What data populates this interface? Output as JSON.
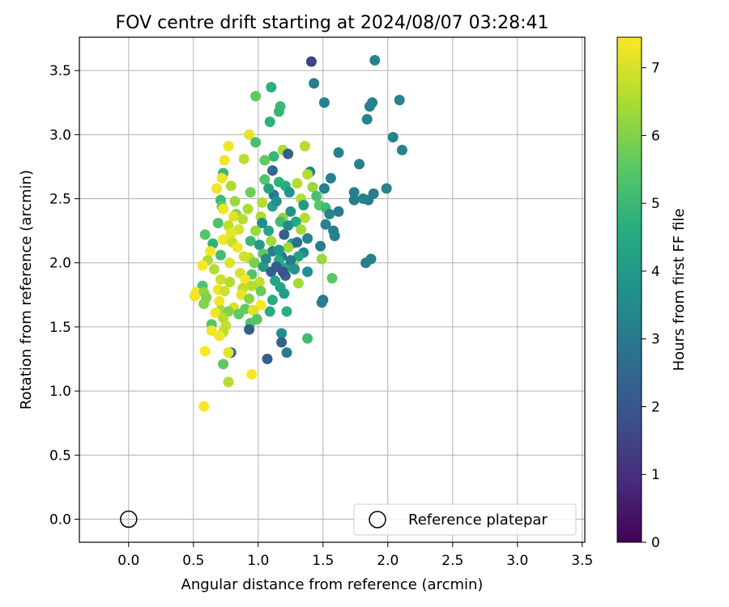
{
  "chart_data": {
    "type": "scatter",
    "title": "FOV centre drift starting at 2024/08/07 03:28:41",
    "xlabel": "Angular distance from reference (arcmin)",
    "ylabel": "Rotation from reference (arcmin)",
    "xlim": [
      -0.38,
      3.52
    ],
    "ylim": [
      -0.18,
      3.76
    ],
    "xticks": [
      "0.0",
      "0.5",
      "1.0",
      "1.5",
      "2.0",
      "2.5",
      "3.0",
      "3.5"
    ],
    "yticks": [
      "0.0",
      "0.5",
      "1.0",
      "1.5",
      "2.0",
      "2.5",
      "3.0",
      "3.5"
    ],
    "grid": true,
    "colorbar": {
      "label": "Hours from first FF file",
      "range": [
        0,
        7.45
      ],
      "ticks": [
        "0",
        "1",
        "2",
        "3",
        "4",
        "5",
        "6",
        "7"
      ],
      "colormap": "viridis"
    },
    "legend": {
      "position": "lower-right",
      "entries": [
        "Reference platepar"
      ]
    },
    "reference_point": {
      "x": 0.0,
      "y": 0.0
    },
    "points": [
      [
        1.41,
        3.57,
        1.5
      ],
      [
        1.9,
        3.58,
        3.3
      ],
      [
        1.43,
        3.4,
        3.1
      ],
      [
        1.1,
        3.37,
        4.7
      ],
      [
        0.98,
        3.3,
        5.6
      ],
      [
        1.51,
        3.25,
        3.2
      ],
      [
        2.09,
        3.27,
        3.3
      ],
      [
        1.88,
        3.25,
        3.2
      ],
      [
        1.86,
        3.22,
        3.2
      ],
      [
        1.17,
        3.22,
        5.0
      ],
      [
        1.16,
        3.18,
        4.9
      ],
      [
        1.84,
        3.12,
        3.3
      ],
      [
        1.09,
        3.1,
        4.8
      ],
      [
        0.93,
        3.0,
        7.2
      ],
      [
        2.04,
        2.98,
        3.3
      ],
      [
        0.98,
        2.94,
        5.2
      ],
      [
        0.77,
        2.91,
        7.3
      ],
      [
        1.36,
        2.91,
        6.6
      ],
      [
        1.19,
        2.88,
        6.5
      ],
      [
        2.11,
        2.88,
        3.3
      ],
      [
        1.62,
        2.86,
        3.2
      ],
      [
        1.23,
        2.85,
        2.2
      ],
      [
        1.12,
        2.83,
        4.9
      ],
      [
        0.89,
        2.81,
        6.7
      ],
      [
        0.74,
        2.8,
        7.3
      ],
      [
        1.05,
        2.8,
        5.6
      ],
      [
        1.78,
        2.77,
        3.2
      ],
      [
        1.11,
        2.72,
        2.5
      ],
      [
        1.4,
        2.71,
        3.3
      ],
      [
        0.73,
        2.7,
        5.0
      ],
      [
        1.38,
        2.69,
        6.6
      ],
      [
        0.72,
        2.66,
        7.3
      ],
      [
        1.56,
        2.66,
        3.2
      ],
      [
        1.05,
        2.65,
        5.4
      ],
      [
        1.16,
        2.63,
        4.8
      ],
      [
        1.3,
        2.62,
        6.6
      ],
      [
        0.79,
        2.6,
        6.5
      ],
      [
        1.21,
        2.6,
        4.6
      ],
      [
        1.42,
        2.59,
        6.3
      ],
      [
        0.68,
        2.58,
        7.3
      ],
      [
        1.51,
        2.58,
        3.2
      ],
      [
        1.99,
        2.58,
        3.3
      ],
      [
        0.94,
        2.55,
        5.8
      ],
      [
        1.74,
        2.55,
        3.2
      ],
      [
        1.12,
        2.53,
        3.0
      ],
      [
        1.89,
        2.54,
        3.1
      ],
      [
        1.45,
        2.52,
        5.2
      ],
      [
        0.71,
        2.49,
        5.1
      ],
      [
        1.33,
        2.5,
        6.6
      ],
      [
        1.74,
        2.49,
        3.1
      ],
      [
        1.85,
        2.49,
        3.1
      ],
      [
        1.81,
        2.5,
        3.3
      ],
      [
        0.82,
        2.48,
        6.3
      ],
      [
        1.03,
        2.47,
        6.6
      ],
      [
        1.47,
        2.45,
        5.5
      ],
      [
        0.72,
        2.44,
        5.6
      ],
      [
        1.11,
        2.44,
        4.2
      ],
      [
        1.52,
        2.43,
        5.1
      ],
      [
        0.92,
        2.42,
        6.5
      ],
      [
        0.73,
        2.42,
        7.3
      ],
      [
        1.25,
        2.4,
        3.8
      ],
      [
        1.55,
        2.38,
        3.4
      ],
      [
        1.62,
        2.4,
        3.1
      ],
      [
        0.83,
        2.38,
        6.1
      ],
      [
        0.81,
        2.36,
        7.1
      ],
      [
        1.02,
        2.36,
        6.5
      ],
      [
        1.19,
        2.35,
        6.2
      ],
      [
        1.36,
        2.35,
        6.6
      ],
      [
        0.88,
        2.34,
        6.6
      ],
      [
        1.17,
        2.32,
        5.1
      ],
      [
        1.29,
        2.32,
        4.5
      ],
      [
        1.52,
        2.3,
        3.3
      ],
      [
        0.77,
        2.29,
        6.7
      ],
      [
        1.23,
        2.29,
        3.6
      ],
      [
        0.69,
        2.31,
        5.3
      ],
      [
        1.33,
        2.26,
        6.4
      ],
      [
        0.85,
        2.26,
        7.0
      ],
      [
        1.58,
        2.25,
        3.2
      ],
      [
        1.08,
        2.25,
        4.4
      ],
      [
        0.79,
        2.23,
        7.2
      ],
      [
        0.59,
        2.22,
        5.4
      ],
      [
        1.2,
        2.22,
        2.3
      ],
      [
        1.59,
        2.21,
        3.2
      ],
      [
        1.38,
        2.19,
        3.3
      ],
      [
        0.73,
        2.18,
        7.3
      ],
      [
        0.94,
        2.17,
        5.0
      ],
      [
        1.1,
        2.17,
        6.4
      ],
      [
        0.8,
        2.16,
        6.8
      ],
      [
        1.26,
        2.15,
        4.3
      ],
      [
        0.65,
        2.15,
        4.8
      ],
      [
        1.01,
        2.14,
        4.0
      ],
      [
        1.48,
        2.13,
        3.1
      ],
      [
        0.84,
        2.12,
        7.3
      ],
      [
        1.23,
        2.12,
        6.4
      ],
      [
        0.63,
        2.09,
        7.4
      ],
      [
        1.11,
        2.09,
        3.1
      ],
      [
        1.35,
        2.08,
        3.5
      ],
      [
        1.04,
        2.07,
        5.6
      ],
      [
        0.71,
        2.06,
        5.1
      ],
      [
        1.18,
        2.05,
        2.7
      ],
      [
        1.31,
        2.05,
        4.3
      ],
      [
        0.93,
        2.04,
        6.7
      ],
      [
        1.49,
        2.03,
        6.3
      ],
      [
        1.87,
        2.03,
        3.2
      ],
      [
        0.61,
        2.02,
        6.5
      ],
      [
        1.16,
        2.02,
        4.5
      ],
      [
        1.83,
        2.0,
        3.2
      ],
      [
        0.78,
        2.0,
        7.1
      ],
      [
        0.97,
        2.0,
        5.9
      ],
      [
        1.27,
        1.99,
        6.2
      ],
      [
        0.57,
        1.98,
        7.4
      ],
      [
        1.04,
        1.97,
        4.0
      ],
      [
        1.21,
        1.96,
        4.2
      ],
      [
        0.66,
        1.95,
        6.6
      ],
      [
        1.1,
        1.93,
        2.2
      ],
      [
        1.38,
        1.93,
        3.6
      ],
      [
        0.86,
        1.92,
        7.0
      ],
      [
        0.95,
        1.91,
        5.4
      ],
      [
        1.21,
        1.9,
        2.4
      ],
      [
        1.57,
        1.88,
        5.5
      ],
      [
        0.71,
        1.87,
        6.9
      ],
      [
        0.9,
        1.87,
        7.4
      ],
      [
        1.13,
        1.86,
        4.3
      ],
      [
        1.01,
        1.85,
        6.8
      ],
      [
        0.78,
        1.85,
        6.6
      ],
      [
        1.31,
        1.84,
        6.4
      ],
      [
        0.57,
        1.82,
        5.3
      ],
      [
        0.95,
        1.82,
        6.6
      ],
      [
        1.17,
        1.81,
        4.3
      ],
      [
        0.88,
        1.8,
        6.7
      ],
      [
        0.69,
        1.79,
        7.3
      ],
      [
        1.02,
        1.78,
        5.7
      ],
      [
        0.74,
        1.78,
        6.9
      ],
      [
        0.52,
        1.77,
        7.4
      ],
      [
        0.58,
        1.77,
        6.2
      ],
      [
        1.2,
        1.76,
        4.1
      ],
      [
        0.87,
        1.75,
        7.2
      ],
      [
        0.51,
        1.74,
        7.3
      ],
      [
        0.6,
        1.73,
        6.0
      ],
      [
        0.93,
        1.72,
        6.1
      ],
      [
        1.11,
        1.71,
        4.6
      ],
      [
        1.5,
        1.71,
        2.8
      ],
      [
        0.7,
        1.7,
        7.3
      ],
      [
        1.49,
        1.69,
        3.2
      ],
      [
        0.58,
        1.68,
        6.0
      ],
      [
        1.02,
        1.67,
        7.4
      ],
      [
        0.81,
        1.65,
        7.0
      ],
      [
        0.9,
        1.64,
        5.6
      ],
      [
        0.96,
        1.63,
        7.1
      ],
      [
        0.71,
        1.63,
        6.4
      ],
      [
        1.09,
        1.62,
        4.6
      ],
      [
        1.22,
        1.62,
        4.7
      ],
      [
        0.77,
        1.62,
        6.0
      ],
      [
        0.67,
        1.61,
        7.3
      ],
      [
        0.85,
        1.6,
        5.6
      ],
      [
        0.73,
        1.57,
        6.6
      ],
      [
        0.99,
        1.56,
        5.4
      ],
      [
        0.94,
        1.53,
        5.4
      ],
      [
        0.64,
        1.52,
        5.5
      ],
      [
        0.75,
        1.51,
        6.8
      ],
      [
        0.93,
        1.48,
        2.2
      ],
      [
        0.64,
        1.47,
        7.3
      ],
      [
        0.73,
        1.46,
        6.7
      ],
      [
        1.18,
        1.45,
        3.6
      ],
      [
        0.7,
        1.43,
        7.3
      ],
      [
        1.38,
        1.41,
        5.1
      ],
      [
        1.18,
        1.38,
        2.3
      ],
      [
        0.59,
        1.31,
        7.4
      ],
      [
        1.22,
        1.3,
        3.0
      ],
      [
        0.79,
        1.3,
        2.3
      ],
      [
        0.77,
        1.3,
        7.1
      ],
      [
        1.07,
        1.25,
        2.3
      ],
      [
        0.73,
        1.21,
        5.6
      ],
      [
        0.95,
        1.13,
        7.4
      ],
      [
        0.77,
        1.07,
        6.6
      ],
      [
        0.58,
        0.88,
        7.4
      ],
      [
        1.14,
        1.97,
        2.1
      ],
      [
        1.19,
        1.93,
        1.9
      ],
      [
        1.25,
        2.02,
        3.0
      ],
      [
        1.06,
        2.03,
        3.5
      ],
      [
        1.3,
        2.16,
        2.8
      ],
      [
        1.14,
        2.48,
        3.7
      ],
      [
        1.24,
        2.55,
        3.9
      ],
      [
        1.03,
        2.31,
        3.6
      ],
      [
        1.35,
        2.45,
        4.0
      ],
      [
        1.16,
        2.1,
        3.9
      ],
      [
        1.28,
        1.95,
        3.8
      ],
      [
        0.89,
        2.05,
        6.9
      ],
      [
        0.98,
        2.25,
        6.3
      ],
      [
        1.08,
        2.58,
        4.3
      ]
    ]
  }
}
